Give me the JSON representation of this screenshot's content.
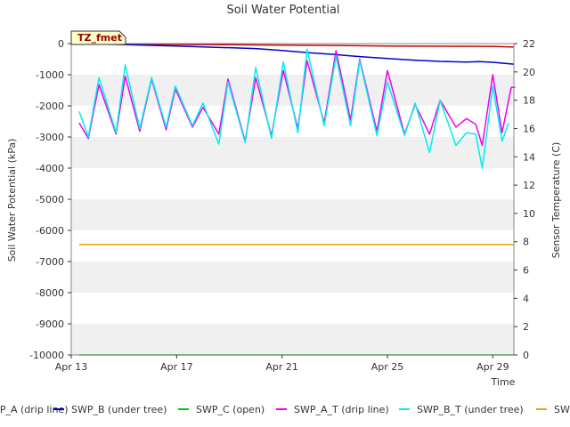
{
  "chart_data": {
    "type": "line",
    "title": "Soil Water Potential",
    "xlabel": "Time",
    "ylabel": "Soil Water Potential (kPa)",
    "y2label": "Sensor Temperature (C)",
    "badge": "TZ_fmet",
    "xlim": [
      0,
      16.8
    ],
    "ylim": [
      -10000,
      0
    ],
    "y2lim": [
      0,
      22
    ],
    "xticks": [
      {
        "x": 0,
        "label": "Apr 13"
      },
      {
        "x": 4,
        "label": "Apr 17"
      },
      {
        "x": 8,
        "label": "Apr 21"
      },
      {
        "x": 12,
        "label": "Apr 25"
      },
      {
        "x": 16,
        "label": "Apr 29"
      }
    ],
    "yticks": [
      0,
      -1000,
      -2000,
      -3000,
      -4000,
      -5000,
      -6000,
      -7000,
      -8000,
      -9000,
      -10000
    ],
    "y2ticks": [
      0,
      2,
      4,
      6,
      8,
      10,
      12,
      14,
      16,
      18,
      20,
      22
    ],
    "legend": [
      "SWP_A (drip line)",
      "SWP_B (under tree)",
      "SWP_C (open)",
      "SWP_A_T (drip line)",
      "SWP_B_T (under tree)",
      "SWP_C_T (open)"
    ],
    "series": [
      {
        "name": "SWP_A (drip line)",
        "axis": "left",
        "color": "#cc0000",
        "x": [
          0.8,
          5,
          10,
          12,
          16,
          16.8
        ],
        "y": [
          -20,
          -30,
          -60,
          -80,
          -90,
          -110
        ]
      },
      {
        "name": "SWP_B (under tree)",
        "axis": "left",
        "color": "#0000cc",
        "x": [
          0.5,
          2,
          4,
          5.5,
          7,
          8,
          9,
          10,
          11,
          12,
          13,
          14,
          15,
          15.5,
          16,
          16.5,
          16.8
        ],
        "y": [
          -10,
          -30,
          -80,
          -120,
          -160,
          -220,
          -290,
          -350,
          -420,
          -480,
          -530,
          -570,
          -590,
          -580,
          -600,
          -640,
          -660
        ]
      },
      {
        "name": "SWP_C (open)",
        "axis": "left",
        "color": "#00cc00",
        "x": [
          0.3,
          16.8
        ],
        "y": [
          -10000,
          -10000
        ]
      },
      {
        "name": "SWP_A_T (drip line)",
        "axis": "right",
        "color": "#ee00ee",
        "x": [
          0.3,
          0.65,
          1.05,
          1.7,
          2.05,
          2.6,
          3.05,
          3.6,
          3.95,
          4.6,
          5.0,
          5.6,
          5.95,
          6.6,
          7.0,
          7.6,
          8.05,
          8.6,
          8.95,
          9.6,
          10.05,
          10.6,
          10.95,
          11.6,
          12.0,
          12.65,
          13.05,
          13.6,
          14.0,
          14.6,
          15.0,
          15.35,
          15.6,
          16.0,
          16.35,
          16.7,
          16.85
        ],
        "y": [
          16.4,
          15.3,
          19.1,
          15.6,
          19.7,
          15.8,
          19.5,
          15.9,
          18.8,
          16.1,
          17.5,
          15.6,
          19.5,
          15.1,
          19.6,
          15.5,
          20.1,
          16.0,
          20.8,
          16.4,
          21.5,
          16.6,
          20.9,
          15.8,
          20.1,
          15.6,
          17.7,
          15.6,
          18.0,
          16.1,
          16.7,
          16.3,
          14.8,
          19.8,
          15.7,
          18.9,
          18.9
        ]
      },
      {
        "name": "SWP_B_T (under tree)",
        "axis": "right",
        "color": "#00eeee",
        "x": [
          0.3,
          0.65,
          1.05,
          1.7,
          2.05,
          2.6,
          3.05,
          3.6,
          3.95,
          4.6,
          5.0,
          5.6,
          5.95,
          6.6,
          7.0,
          7.6,
          8.05,
          8.6,
          8.95,
          9.6,
          10.05,
          10.6,
          10.95,
          11.6,
          12.0,
          12.65,
          13.05,
          13.6,
          14.0,
          14.6,
          15.0,
          15.35,
          15.6,
          16.0,
          16.35,
          16.6
        ],
        "y": [
          17.2,
          15.4,
          19.6,
          15.7,
          20.5,
          16.0,
          19.6,
          16.1,
          19.0,
          16.2,
          17.8,
          14.9,
          19.3,
          15.0,
          20.3,
          15.3,
          20.7,
          15.7,
          21.6,
          16.2,
          21.1,
          16.2,
          20.8,
          15.5,
          19.3,
          15.5,
          17.8,
          14.3,
          18.0,
          14.8,
          15.7,
          15.6,
          13.2,
          19.0,
          15.1,
          16.4
        ]
      },
      {
        "name": "SWP_C_T (open)",
        "axis": "right",
        "color": "#f0a000",
        "x": [
          0.3,
          16.8
        ],
        "y": [
          7.8,
          7.8
        ]
      }
    ]
  }
}
